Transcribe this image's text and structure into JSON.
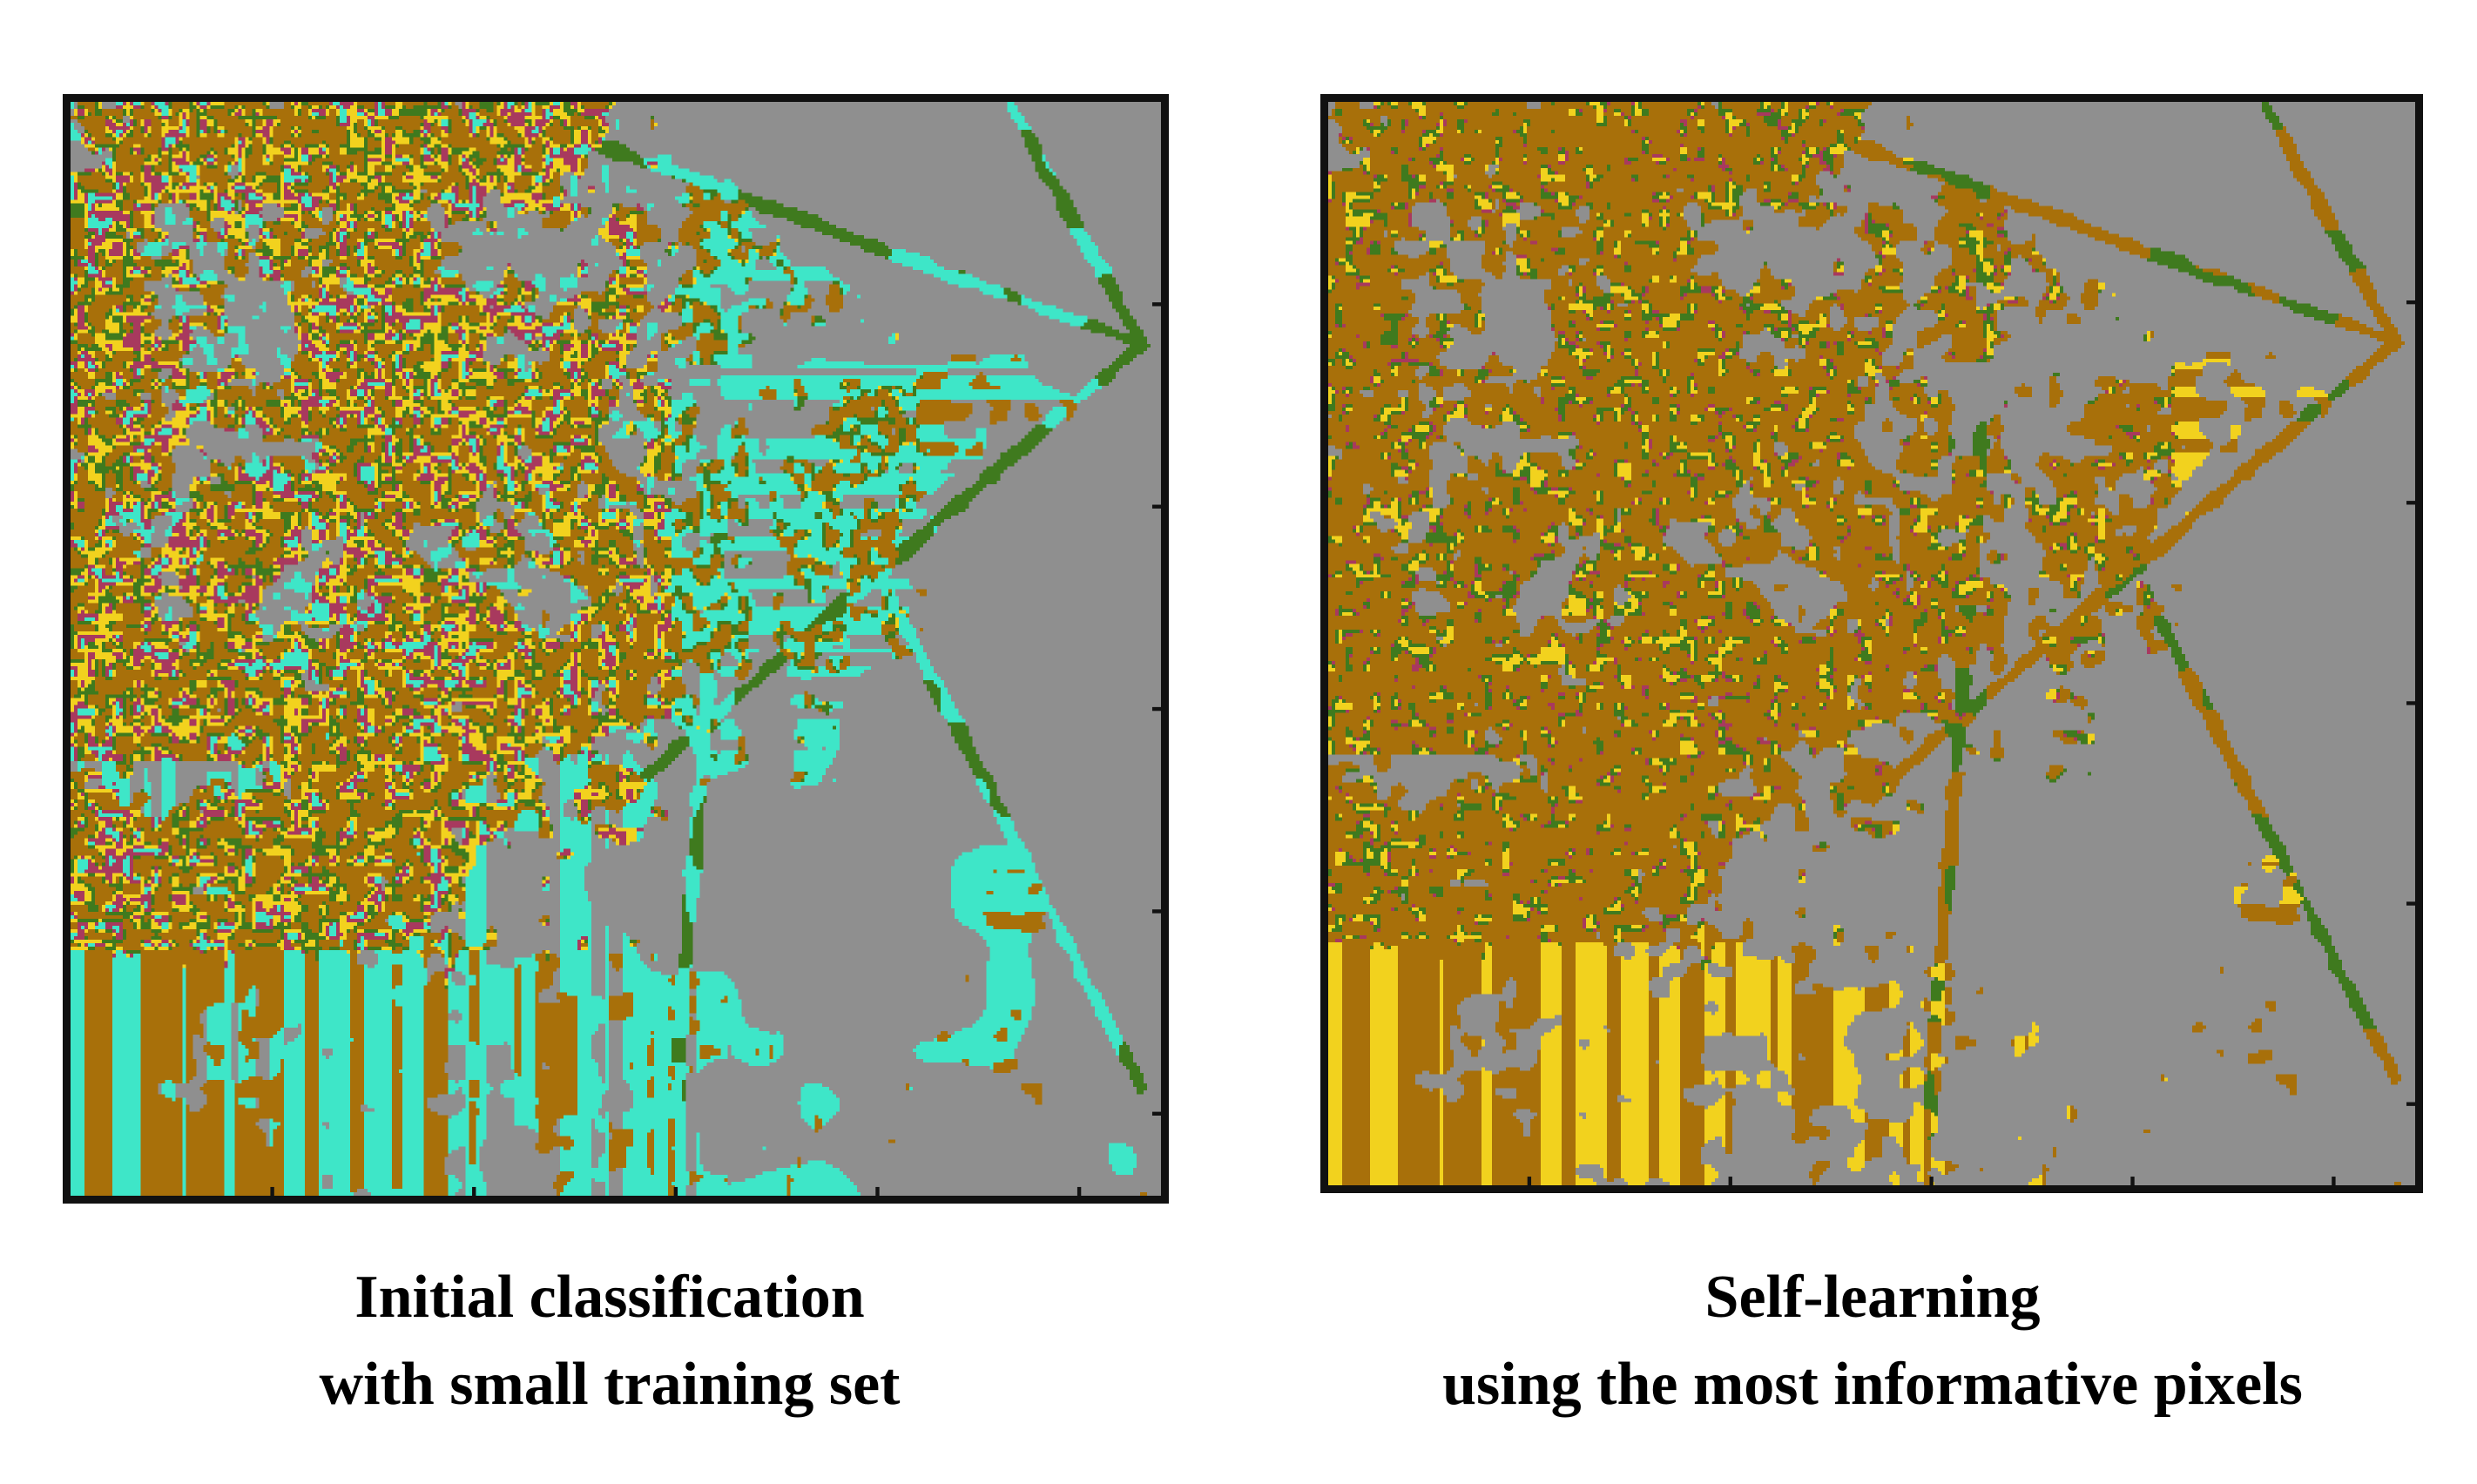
{
  "figure": {
    "left_panel": {
      "caption_line1": "Initial classification",
      "caption_line2": "with small training set"
    },
    "right_panel": {
      "caption_line1": "Self-learning",
      "caption_line2": "using the most informative pixels"
    }
  },
  "class_colors": {
    "background": "#8f8f8f",
    "brown": "#a8700a",
    "yellow": "#f2d21e",
    "green": "#3f7a1e",
    "magenta": "#a8395e",
    "cyan": "#3ee6c8",
    "frame": "#111111"
  }
}
